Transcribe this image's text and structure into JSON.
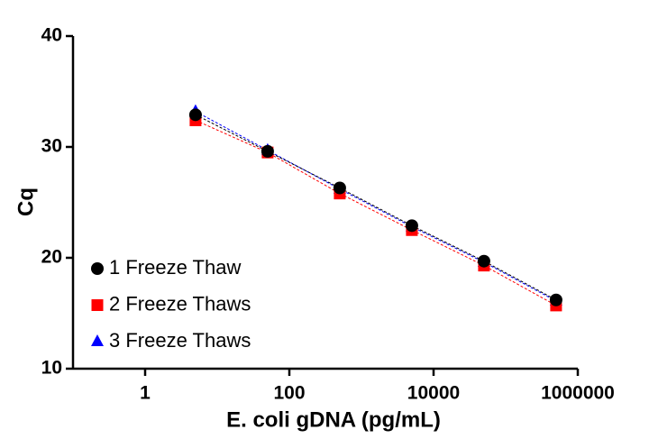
{
  "chart_data": {
    "type": "scatter",
    "x_label": "E. coli gDNA (pg/mL)",
    "y_label": "Cq",
    "x": [
      5,
      50,
      500,
      5000,
      50000,
      500000
    ],
    "series": [
      {
        "name": "1 Freeze Thaw",
        "color": "#000000",
        "marker": "circle",
        "values": [
          32.9,
          29.6,
          26.3,
          22.9,
          19.7,
          16.2
        ]
      },
      {
        "name": "2 Freeze Thaws",
        "color": "#ff0000",
        "marker": "square",
        "values": [
          32.4,
          29.5,
          25.8,
          22.5,
          19.3,
          15.7
        ]
      },
      {
        "name": "3 Freeze Thaws",
        "color": "#0000ff",
        "marker": "triangle",
        "values": [
          33.2,
          29.7,
          26.2,
          22.8,
          19.6,
          16.1
        ]
      }
    ],
    "xscale": "log",
    "xlim": [
      0.1,
      1000000
    ],
    "xticks": [
      1,
      100,
      10000,
      1000000
    ],
    "ylim": [
      10,
      40
    ],
    "yticks": [
      10,
      20,
      30,
      40
    ],
    "legend": "lower left"
  }
}
